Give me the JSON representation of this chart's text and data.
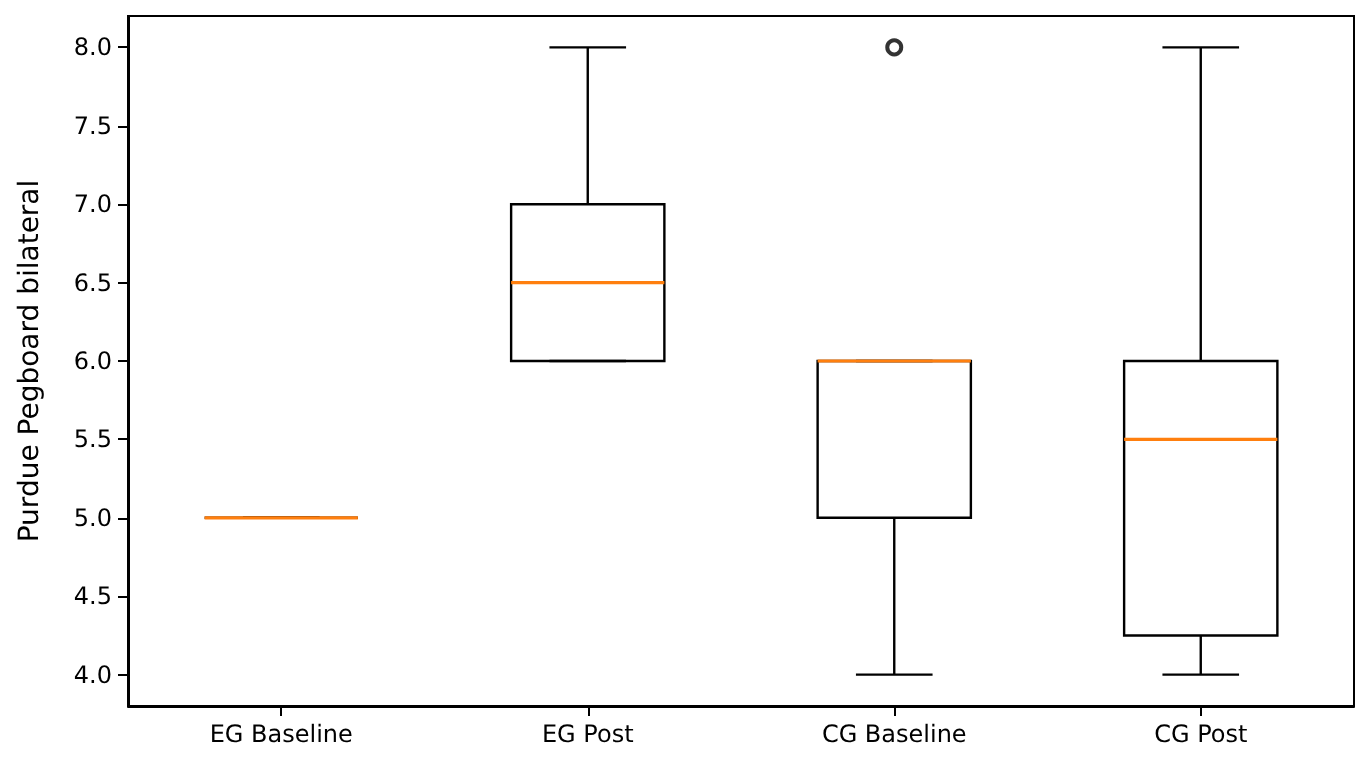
{
  "chart_data": {
    "type": "box",
    "ylabel": "Purdue Pegboard bilateral",
    "categories": [
      "EG Baseline",
      "EG Post",
      "CG Baseline",
      "CG Post"
    ],
    "series": [
      {
        "color": "#000000",
        "boxes": [
          {
            "low": 5,
            "q1": 5,
            "median": 5,
            "q3": 5,
            "high": 5
          },
          {
            "low": 6,
            "q1": 6,
            "median": 6.5,
            "q3": 7,
            "high": 8
          },
          {
            "low": 4,
            "q1": 5,
            "median": 6,
            "q3": 6,
            "high": 6,
            "outliers": [
              8
            ]
          },
          {
            "low": 4,
            "q1": 4.25,
            "median": 5.5,
            "q3": 6,
            "high": 8
          }
        ]
      }
    ],
    "ylim": [
      3.8,
      8.2
    ],
    "yticks": [
      {
        "value": 4,
        "label": "4.0"
      },
      {
        "value": 4.5,
        "label": "4.5"
      },
      {
        "value": 5,
        "label": "5.0"
      },
      {
        "value": 5.5,
        "label": "5.5"
      },
      {
        "value": 6,
        "label": "6.0"
      },
      {
        "value": 6.5,
        "label": "6.5"
      },
      {
        "value": 7,
        "label": "7.0"
      },
      {
        "value": 7.5,
        "label": "7.5"
      },
      {
        "value": 8,
        "label": "8.0"
      }
    ],
    "grid": false
  }
}
